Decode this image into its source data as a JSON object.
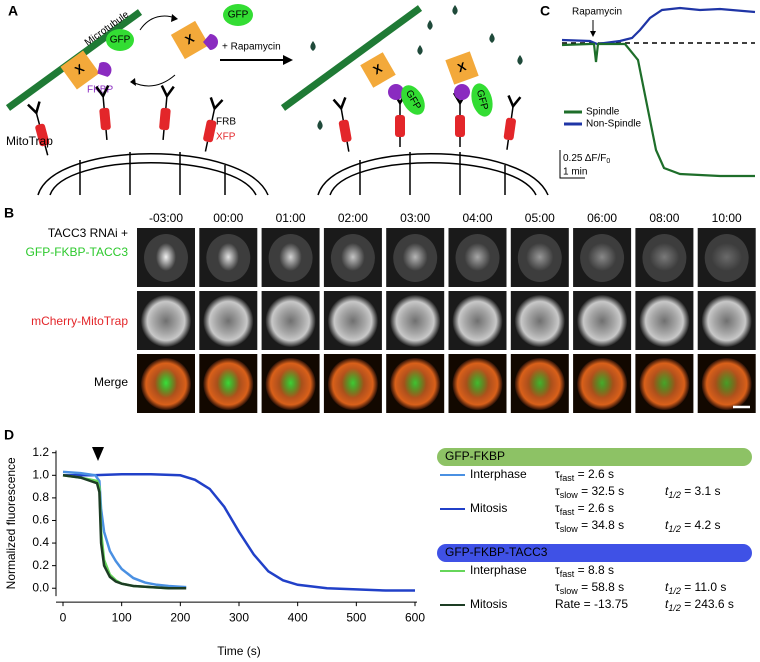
{
  "panel_a": {
    "label": "A",
    "microtubule": "Microtubule",
    "gfp": "GFP",
    "x": "X",
    "fkbp": "FKBP",
    "rapamycin": "+ Rapamycin",
    "frb": "FRB",
    "xfp": "XFP",
    "mitotrap": "MitoTrap"
  },
  "panel_b": {
    "label": "B",
    "times": [
      "-03:00",
      "00:00",
      "01:00",
      "02:00",
      "03:00",
      "04:00",
      "05:00",
      "06:00",
      "08:00",
      "10:00"
    ],
    "row_labels": [
      [
        "TACC3 RNAi +",
        "GFP-FKBP-TACC3"
      ],
      [
        "mCherry-MitoTrap"
      ],
      [
        "Merge"
      ]
    ]
  },
  "panel_c": {
    "label": "C",
    "rapamycin": "Rapamycin",
    "legend": [
      "Spindle",
      "Non-Spindle"
    ],
    "scale_y": "0.25 ΔF/F",
    "scale_y_sub": "0",
    "scale_x": "1 min"
  },
  "panel_d_label": "D",
  "chart_data": {
    "type": "line",
    "xlabel": "Time (s)",
    "ylabel": "Normalized fluorescence",
    "xlim": [
      0,
      600
    ],
    "xticks": [
      0,
      100,
      200,
      300,
      400,
      500,
      600
    ],
    "ylim": [
      -0.07,
      1.22
    ],
    "yticks": [
      {
        "value": 0,
        "label": "0.0"
      },
      0.2,
      0.4,
      0.6,
      0.8,
      {
        "value": 1,
        "label": "1.0"
      },
      1.2
    ],
    "legend_groups": [
      {
        "title": "GFP-FKBP",
        "color": "#8dc265"
      },
      {
        "title": "GFP-FKBP-TACC3",
        "color": "#3f51e6"
      }
    ],
    "series": [
      {
        "name": "Interphase",
        "color": "#4a90e2",
        "x": [
          0,
          30,
          55,
          62,
          65,
          70,
          80,
          90,
          100,
          120,
          140,
          160,
          180,
          210
        ],
        "values": [
          1.03,
          1.02,
          1.0,
          0.95,
          0.7,
          0.5,
          0.33,
          0.24,
          0.17,
          0.09,
          0.05,
          0.03,
          0.02,
          0.01
        ],
        "params": [
          [
            {
              "sym": "τ",
              "sub": "fast",
              "val": " = 2.6 s"
            }
          ],
          [
            {
              "sym": "τ",
              "sub": "slow",
              "val": " = 32.5 s"
            },
            {
              "sym": "t",
              "sub": "1/2",
              "val": " = 3.1 s"
            }
          ]
        ]
      },
      {
        "name": "Mitosis",
        "color": "#2140c8",
        "x": [
          0,
          50,
          100,
          150,
          200,
          225,
          250,
          275,
          300,
          325,
          350,
          375,
          400,
          450,
          500,
          550,
          600
        ],
        "values": [
          1.0,
          1.0,
          1.01,
          1.01,
          1.0,
          0.96,
          0.88,
          0.72,
          0.5,
          0.3,
          0.15,
          0.07,
          0.03,
          0.0,
          -0.01,
          -0.02,
          -0.02
        ],
        "params": [
          [
            {
              "sym": "τ",
              "sub": "fast",
              "val": " = 2.6 s"
            }
          ],
          [
            {
              "sym": "τ",
              "sub": "slow",
              "val": " = 34.8 s"
            },
            {
              "sym": "t",
              "sub": "1/2",
              "val": " = 4.2 s"
            }
          ]
        ]
      },
      {
        "name": "Interphase",
        "color": "#66d65a",
        "x": [
          0,
          30,
          58,
          62,
          65,
          70,
          80,
          90,
          100,
          120,
          150,
          180
        ],
        "values": [
          1.0,
          0.98,
          0.95,
          0.9,
          0.5,
          0.25,
          0.12,
          0.07,
          0.04,
          0.02,
          0.01,
          0.0
        ],
        "params": [
          [
            {
              "sym": "τ",
              "sub": "fast",
              "val": " = 8.8 s"
            }
          ],
          [
            {
              "sym": "τ",
              "sub": "slow",
              "val": " = 58.8 s"
            },
            {
              "sym": "t",
              "sub": "1/2",
              "val": " = 11.0 s"
            }
          ]
        ]
      },
      {
        "name": "Mitosis",
        "color": "#1d3d24",
        "x": [
          0,
          30,
          58,
          62,
          65,
          70,
          80,
          90,
          100,
          120,
          150,
          180,
          210
        ],
        "values": [
          1.0,
          0.98,
          0.93,
          0.85,
          0.4,
          0.2,
          0.1,
          0.06,
          0.04,
          0.02,
          0.01,
          0.0,
          0.0
        ],
        "params": [
          [
            {
              "val": "Rate = -13.75"
            },
            {
              "sym": "t",
              "sub": "1/2",
              "val": " = 243.6 s"
            }
          ]
        ]
      }
    ]
  }
}
